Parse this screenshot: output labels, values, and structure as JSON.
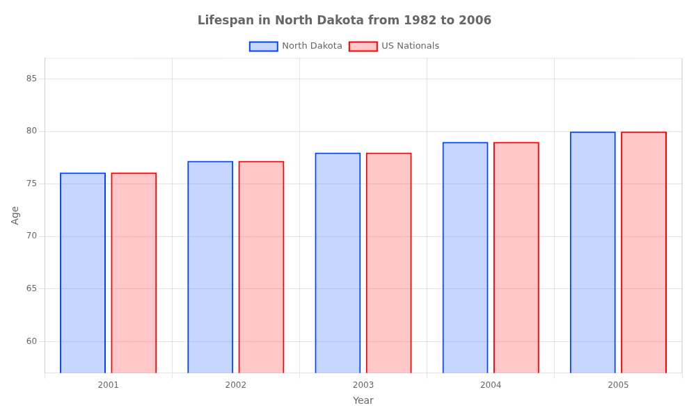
{
  "chart_data": {
    "type": "bar",
    "title": "Lifespan in North Dakota from 1982 to 2006",
    "xlabel": "Year",
    "ylabel": "Age",
    "categories": [
      "2001",
      "2002",
      "2003",
      "2004",
      "2005"
    ],
    "series": [
      {
        "name": "North Dakota",
        "color": "#0044ff",
        "values": [
          76.1,
          77.2,
          78.0,
          79.0,
          80.0
        ]
      },
      {
        "name": "US Nationals",
        "color": "#ff0000",
        "values": [
          76.1,
          77.2,
          78.0,
          79.0,
          80.0
        ]
      }
    ],
    "ylim": [
      57,
      87
    ],
    "yticks": [
      60,
      65,
      70,
      75,
      80,
      85
    ],
    "grid": true,
    "legend": "top"
  }
}
